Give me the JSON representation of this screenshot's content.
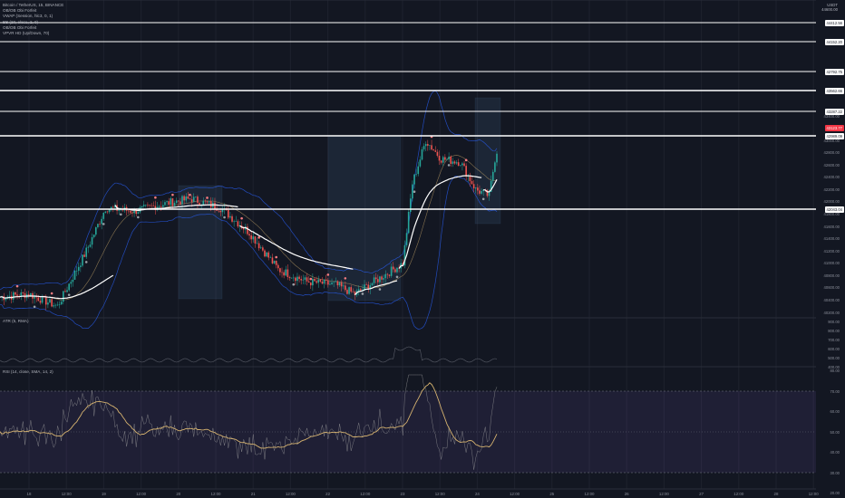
{
  "legend": {
    "symbol": "Bitcoin / TetherUS, 15, BINANCE",
    "lines": [
      "OB/OB Obi Forfeit",
      "VWAP (Session, hlc3, 0, 1)",
      "BB (20, close, 2, 0)",
      "OB/OB Obi Forfeit",
      "VPVR HD (Up/Down, 70)"
    ]
  },
  "top_right": {
    "currency": "USDT",
    "price": "44600.00"
  },
  "h_levels": [
    {
      "value": "44412.56"
    },
    {
      "value": "44152.20"
    },
    {
      "value": "42792.75"
    },
    {
      "value": "43562.66"
    },
    {
      "value": "43287.22"
    },
    {
      "value": "42989.09"
    },
    {
      "value": "42043.04"
    }
  ],
  "current_price": "43123.77",
  "price_axis": [
    "43400.00",
    "43000.00",
    "42800.00",
    "42600.00",
    "42400.00",
    "42200.00",
    "42000.00",
    "41800.00",
    "41600.00",
    "41400.00",
    "41200.00",
    "41000.00",
    "40800.00",
    "40600.00",
    "40400.00",
    "40200.00"
  ],
  "atr": {
    "label": "ATR (5, RMA)",
    "axis": [
      "900.00",
      "800.00",
      "700.00",
      "600.00",
      "500.00",
      "400.00"
    ]
  },
  "rsi": {
    "label": "RSI (14, close, SMA, 14, 2)",
    "axis": [
      "80.00",
      "70.00",
      "60.00",
      "50.00",
      "40.00",
      "30.00",
      "20.00"
    ]
  },
  "time_axis": [
    "18",
    "12:00",
    "19",
    "12:00",
    "20",
    "12:00",
    "21",
    "12:00",
    "22",
    "12:00",
    "23",
    "12:00",
    "24",
    "12:00",
    "25",
    "12:00",
    "26",
    "12:00",
    "27",
    "12:00",
    "28",
    "12:00"
  ],
  "colors": {
    "bg": "#131722",
    "up": "#26a69a",
    "down": "#ef5350",
    "vwap": "#ffffff",
    "band": "#2962ff",
    "rsi_line": "#a0a0a0",
    "rsi_ma": "#d6b370"
  }
}
